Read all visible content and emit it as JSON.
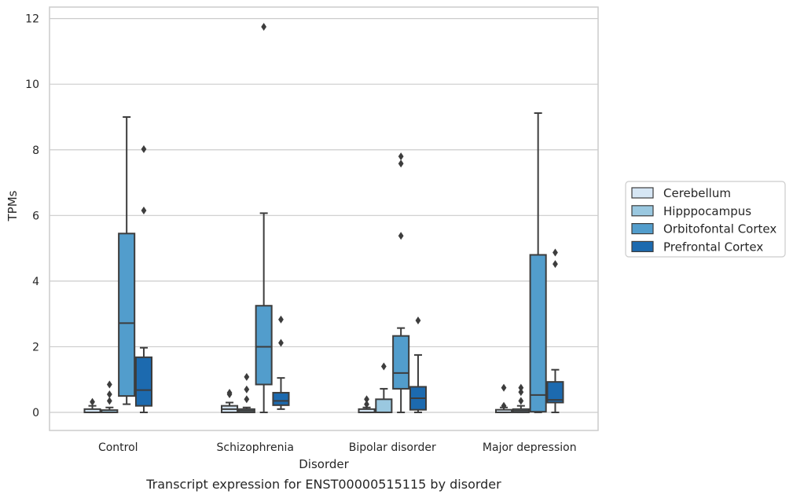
{
  "chart_data": {
    "type": "box",
    "title": "",
    "caption": "Transcript expression for ENST00000515115 by disorder",
    "xlabel": "Disorder",
    "ylabel": "TPMs",
    "ylim": [
      -0.55,
      12.35
    ],
    "yticks": [
      0,
      2,
      4,
      6,
      8,
      10,
      12
    ],
    "grid": "horizontal",
    "legend_position": "right",
    "categories": [
      "Control",
      "Schizophrenia",
      "Bipolar disorder",
      "Major depression"
    ],
    "series": [
      {
        "name": "Cerebellum",
        "color": "#d6e6f4",
        "boxes": [
          {
            "q1": 0.0,
            "median": 0.0,
            "q3": 0.1,
            "whislo": 0.0,
            "whishi": 0.2,
            "fliers": [
              0.32
            ]
          },
          {
            "q1": 0.0,
            "median": 0.1,
            "q3": 0.2,
            "whislo": 0.0,
            "whishi": 0.3,
            "fliers": [
              0.55,
              0.6
            ]
          },
          {
            "q1": 0.0,
            "median": 0.0,
            "q3": 0.1,
            "whislo": 0.0,
            "whishi": 0.15,
            "fliers": [
              0.25,
              0.4
            ]
          },
          {
            "q1": 0.0,
            "median": 0.0,
            "q3": 0.08,
            "whislo": 0.0,
            "whishi": 0.15,
            "fliers": [
              0.2,
              0.75
            ]
          }
        ]
      },
      {
        "name": "Hipppocampus",
        "color": "#9ac8e0",
        "boxes": [
          {
            "q1": 0.0,
            "median": 0.0,
            "q3": 0.07,
            "whislo": 0.0,
            "whishi": 0.15,
            "fliers": [
              0.35,
              0.55,
              0.85
            ]
          },
          {
            "q1": 0.0,
            "median": 0.05,
            "q3": 0.1,
            "whislo": 0.0,
            "whishi": 0.15,
            "fliers": [
              0.4,
              0.7,
              1.08
            ]
          },
          {
            "q1": 0.0,
            "median": 0.0,
            "q3": 0.4,
            "whislo": 0.0,
            "whishi": 0.72,
            "fliers": [
              1.4
            ]
          },
          {
            "q1": 0.0,
            "median": 0.05,
            "q3": 0.1,
            "whislo": 0.0,
            "whishi": 0.2,
            "fliers": [
              0.35,
              0.62,
              0.75
            ]
          }
        ]
      },
      {
        "name": "Orbitofontal Cortex",
        "color": "#529dcc",
        "boxes": [
          {
            "q1": 0.5,
            "median": 2.72,
            "q3": 5.45,
            "whislo": 0.25,
            "whishi": 9.0,
            "fliers": []
          },
          {
            "q1": 0.85,
            "median": 2.0,
            "q3": 3.25,
            "whislo": 0.0,
            "whishi": 6.07,
            "fliers": [
              11.75
            ]
          },
          {
            "q1": 0.72,
            "median": 1.2,
            "q3": 2.33,
            "whislo": 0.0,
            "whishi": 2.57,
            "fliers": [
              5.38,
              7.58,
              7.8
            ]
          },
          {
            "q1": 0.02,
            "median": 0.53,
            "q3": 4.8,
            "whislo": 0.0,
            "whishi": 9.12,
            "fliers": []
          }
        ]
      },
      {
        "name": "Prefrontal Cortex",
        "color": "#1c6aaf",
        "boxes": [
          {
            "q1": 0.2,
            "median": 0.68,
            "q3": 1.68,
            "whislo": 0.0,
            "whishi": 1.97,
            "fliers": [
              6.15,
              8.02
            ]
          },
          {
            "q1": 0.22,
            "median": 0.35,
            "q3": 0.6,
            "whislo": 0.1,
            "whishi": 1.05,
            "fliers": [
              2.12,
              2.83
            ]
          },
          {
            "q1": 0.08,
            "median": 0.43,
            "q3": 0.78,
            "whislo": 0.0,
            "whishi": 1.75,
            "fliers": [
              2.8
            ]
          },
          {
            "q1": 0.3,
            "median": 0.38,
            "q3": 0.93,
            "whislo": 0.0,
            "whishi": 1.3,
            "fliers": [
              4.52,
              4.87
            ]
          }
        ]
      }
    ]
  },
  "colors": {
    "grid": "#cccccc",
    "frame": "#cccccc",
    "line": "#3d3d3d",
    "text": "#262626"
  }
}
